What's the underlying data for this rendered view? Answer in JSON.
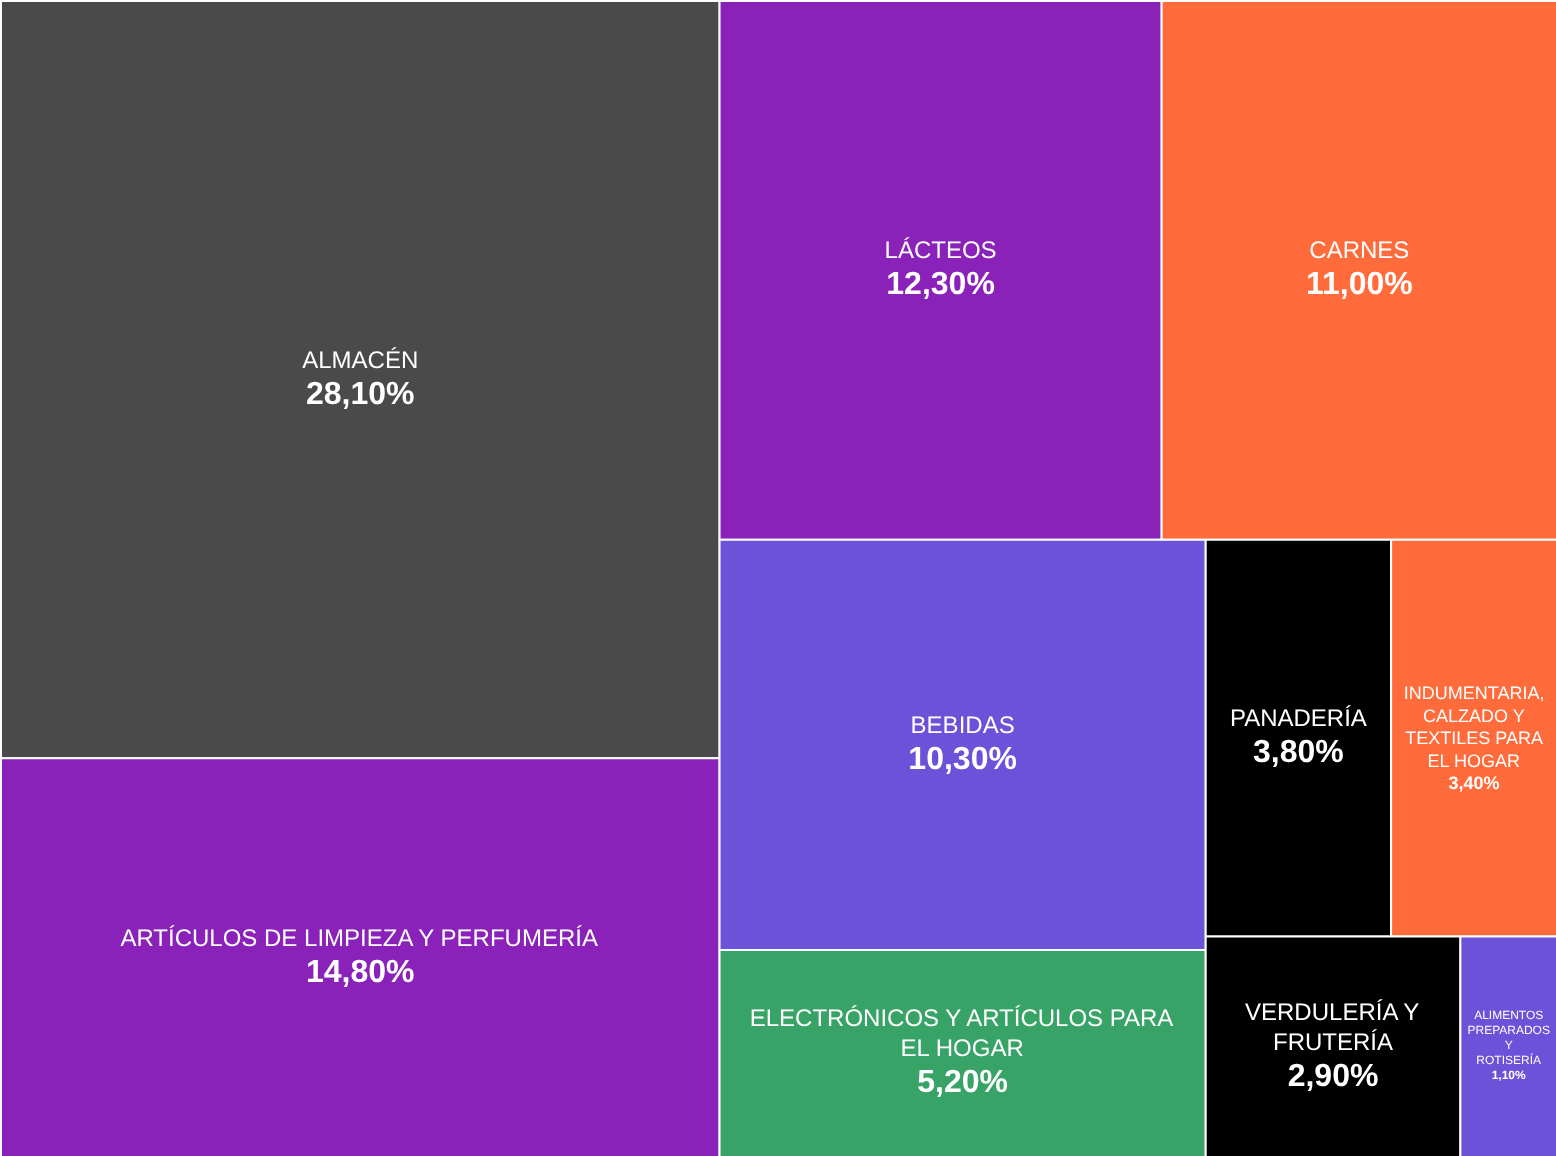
{
  "chart_data": {
    "type": "other",
    "categories": [
      "ALMACÉN",
      "ARTÍCULOS DE LIMPIEZA Y PERFUMERÍA",
      "LÁCTEOS",
      "CARNES",
      "BEBIDAS",
      "ELECTRÓNICOS Y ARTÍCULOS PARA EL HOGAR",
      "PANADERÍA",
      "INDUMENTARIA, CALZADO Y TEXTILES PARA EL HOGAR",
      "VERDULERÍA Y FRUTERÍA",
      "ALIMENTOS PREPARADOS Y ROTISERÍA"
    ],
    "values": [
      28.1,
      14.8,
      12.3,
      11.0,
      10.3,
      5.2,
      3.8,
      3.4,
      2.9,
      1.1
    ],
    "value_labels": [
      "28,10%",
      "14,80%",
      "12,30%",
      "11,00%",
      "10,30%",
      "5,20%",
      "3,80%",
      "3,40%",
      "2,90%",
      "1,10%"
    ],
    "colors": [
      "#4a4a4a",
      "#8a21b9",
      "#8a21b9",
      "#ff6b3a",
      "#6b52d8",
      "#38a366",
      "#000000",
      "#ff6b3a",
      "#000000",
      "#6b52d8"
    ]
  }
}
